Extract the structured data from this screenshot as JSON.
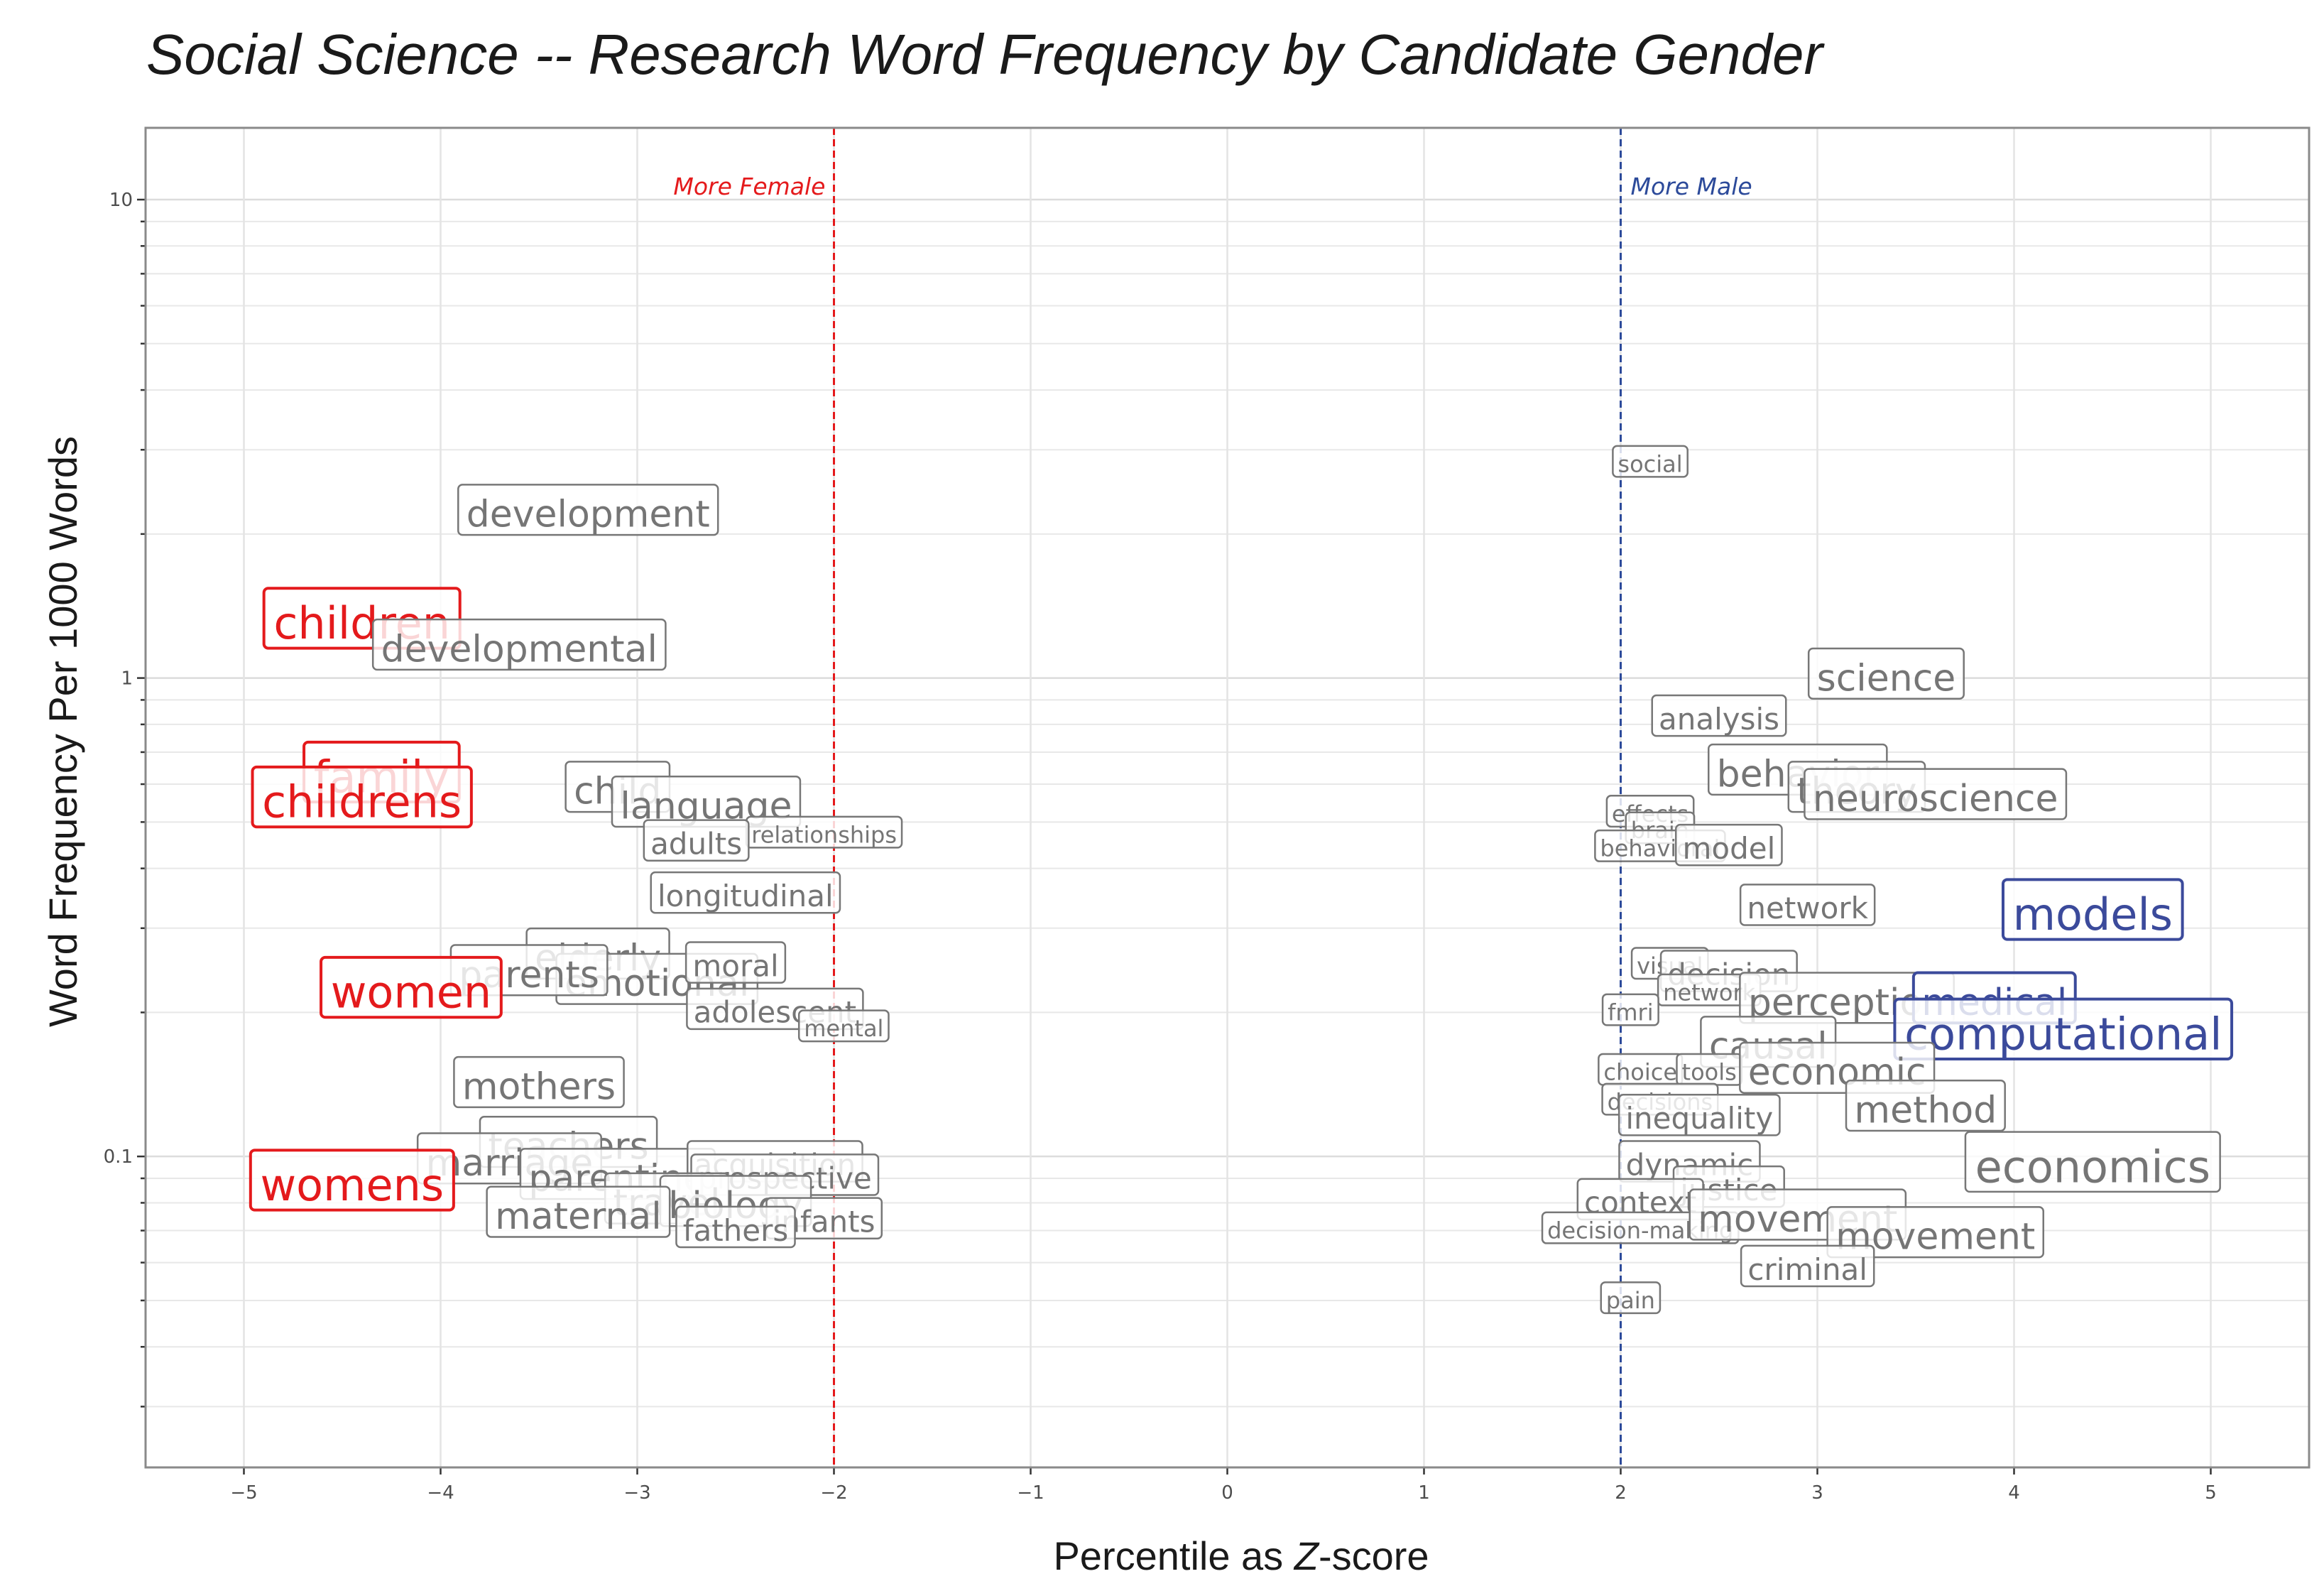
{
  "chart_data": {
    "type": "scatter",
    "title": "Social Science -- Research Word Frequency by Candidate Gender",
    "xlabel": "Percentile as Z-score",
    "ylabel": "Word Frequency Per 1000 Words",
    "xlabel_prefix": "Percentile as ",
    "xlabel_italic": "Z",
    "xlabel_suffix": "-score",
    "xlim": [
      -5.5,
      5.5
    ],
    "ylim_log10": [
      -1.65,
      1.15
    ],
    "y_scale": "log10",
    "x_ticks": [
      -5,
      -4,
      -3,
      -2,
      -1,
      0,
      1,
      2,
      3,
      4,
      5
    ],
    "x_tick_labels": [
      "−5",
      "−4",
      "−3",
      "−2",
      "−1",
      "0",
      "1",
      "2",
      "3",
      "4",
      "5"
    ],
    "y_ticks": [
      0.1,
      1,
      10
    ],
    "y_tick_labels": [
      "0.1",
      "1",
      "10"
    ],
    "grid": true,
    "reference_lines": [
      {
        "x": -2,
        "label": "More Female",
        "color": "#e41a1c"
      },
      {
        "x": 2,
        "label": "More Male",
        "color": "#2c4a9a"
      }
    ],
    "colors": {
      "female": "#e41a1c",
      "male": "#3b4a9b",
      "neutral": "#6e6e6e"
    },
    "words": [
      {
        "text": "development",
        "x": -3.25,
        "y": 2.2,
        "size": 3,
        "color": "neutral"
      },
      {
        "text": "children",
        "x": -4.4,
        "y": 1.3,
        "size": 4,
        "color": "female"
      },
      {
        "text": "developmental",
        "x": -3.6,
        "y": 1.15,
        "size": 3,
        "color": "neutral"
      },
      {
        "text": "family",
        "x": -4.3,
        "y": 0.62,
        "size": 4,
        "color": "female"
      },
      {
        "text": "childrens",
        "x": -4.4,
        "y": 0.55,
        "size": 4,
        "color": "female"
      },
      {
        "text": "child",
        "x": -3.1,
        "y": 0.58,
        "size": 3,
        "color": "neutral"
      },
      {
        "text": "language",
        "x": -2.65,
        "y": 0.54,
        "size": 3,
        "color": "neutral"
      },
      {
        "text": "relationships",
        "x": -2.05,
        "y": 0.47,
        "size": 1,
        "color": "neutral"
      },
      {
        "text": "adults",
        "x": -2.7,
        "y": 0.45,
        "size": 2,
        "color": "neutral"
      },
      {
        "text": "longitudinal",
        "x": -2.45,
        "y": 0.35,
        "size": 2,
        "color": "neutral"
      },
      {
        "text": "elderly",
        "x": -3.2,
        "y": 0.26,
        "size": 3,
        "color": "neutral"
      },
      {
        "text": "emotional",
        "x": -2.9,
        "y": 0.23,
        "size": 3,
        "color": "neutral"
      },
      {
        "text": "moral",
        "x": -2.5,
        "y": 0.25,
        "size": 2,
        "color": "neutral"
      },
      {
        "text": "parents",
        "x": -3.55,
        "y": 0.24,
        "size": 3,
        "color": "neutral"
      },
      {
        "text": "adolescent",
        "x": -2.3,
        "y": 0.2,
        "size": 2,
        "color": "neutral"
      },
      {
        "text": "mental",
        "x": -1.95,
        "y": 0.185,
        "size": 1,
        "color": "neutral"
      },
      {
        "text": "women",
        "x": -4.15,
        "y": 0.22,
        "size": 4,
        "color": "female"
      },
      {
        "text": "mothers",
        "x": -3.5,
        "y": 0.14,
        "size": 3,
        "color": "neutral"
      },
      {
        "text": "teachers",
        "x": -3.35,
        "y": 0.105,
        "size": 3,
        "color": "neutral"
      },
      {
        "text": "marriage",
        "x": -3.65,
        "y": 0.097,
        "size": 3,
        "color": "neutral"
      },
      {
        "text": "parenting",
        "x": -3.1,
        "y": 0.09,
        "size": 3,
        "color": "neutral"
      },
      {
        "text": "acquisition",
        "x": -2.3,
        "y": 0.096,
        "size": 2,
        "color": "neutral"
      },
      {
        "text": "prospective",
        "x": -2.25,
        "y": 0.09,
        "size": 2,
        "color": "neutral"
      },
      {
        "text": "womens",
        "x": -4.45,
        "y": 0.087,
        "size": 4,
        "color": "female"
      },
      {
        "text": "travel",
        "x": -2.85,
        "y": 0.08,
        "size": 3,
        "color": "neutral"
      },
      {
        "text": "biology",
        "x": -2.5,
        "y": 0.079,
        "size": 3,
        "color": "neutral"
      },
      {
        "text": "maternal",
        "x": -3.3,
        "y": 0.075,
        "size": 3,
        "color": "neutral"
      },
      {
        "text": "infants",
        "x": -2.05,
        "y": 0.073,
        "size": 2,
        "color": "neutral"
      },
      {
        "text": "fathers",
        "x": -2.5,
        "y": 0.07,
        "size": 2,
        "color": "neutral"
      },
      {
        "text": "social",
        "x": 2.15,
        "y": 2.8,
        "size": 1,
        "color": "neutral"
      },
      {
        "text": "science",
        "x": 3.35,
        "y": 1.0,
        "size": 3,
        "color": "neutral"
      },
      {
        "text": "analysis",
        "x": 2.5,
        "y": 0.82,
        "size": 2,
        "color": "neutral"
      },
      {
        "text": "behavior",
        "x": 2.9,
        "y": 0.63,
        "size": 3,
        "color": "neutral"
      },
      {
        "text": "theory",
        "x": 3.2,
        "y": 0.58,
        "size": 3,
        "color": "neutral"
      },
      {
        "text": "neuroscience",
        "x": 3.6,
        "y": 0.56,
        "size": 3,
        "color": "neutral"
      },
      {
        "text": "effects",
        "x": 2.15,
        "y": 0.52,
        "size": 1,
        "color": "neutral"
      },
      {
        "text": "brain",
        "x": 2.2,
        "y": 0.48,
        "size": 1,
        "color": "neutral"
      },
      {
        "text": "behavioral",
        "x": 2.2,
        "y": 0.44,
        "size": 1,
        "color": "neutral"
      },
      {
        "text": "model",
        "x": 2.55,
        "y": 0.44,
        "size": 2,
        "color": "neutral"
      },
      {
        "text": "network",
        "x": 2.95,
        "y": 0.33,
        "size": 2,
        "color": "neutral"
      },
      {
        "text": "models",
        "x": 4.4,
        "y": 0.32,
        "size": 4,
        "color": "male"
      },
      {
        "text": "visual",
        "x": 2.25,
        "y": 0.25,
        "size": 1,
        "color": "neutral"
      },
      {
        "text": "decision",
        "x": 2.55,
        "y": 0.24,
        "size": 2,
        "color": "neutral"
      },
      {
        "text": "network",
        "x": 2.45,
        "y": 0.22,
        "size": 1,
        "color": "neutral"
      },
      {
        "text": "perception",
        "x": 3.15,
        "y": 0.21,
        "size": 3,
        "color": "neutral"
      },
      {
        "text": "medical",
        "x": 3.9,
        "y": 0.21,
        "size": 3,
        "color": "male"
      },
      {
        "text": "fmri",
        "x": 2.05,
        "y": 0.2,
        "size": 1,
        "color": "neutral"
      },
      {
        "text": "computational",
        "x": 4.25,
        "y": 0.18,
        "size": 4,
        "color": "male"
      },
      {
        "text": "causal",
        "x": 2.75,
        "y": 0.17,
        "size": 3,
        "color": "neutral"
      },
      {
        "text": "choice",
        "x": 2.1,
        "y": 0.15,
        "size": 1,
        "color": "neutral"
      },
      {
        "text": "tools",
        "x": 2.45,
        "y": 0.15,
        "size": 1,
        "color": "neutral"
      },
      {
        "text": "economic",
        "x": 3.1,
        "y": 0.15,
        "size": 3,
        "color": "neutral"
      },
      {
        "text": "decisions",
        "x": 2.2,
        "y": 0.13,
        "size": 1,
        "color": "neutral"
      },
      {
        "text": "inequality",
        "x": 2.4,
        "y": 0.12,
        "size": 2,
        "color": "neutral"
      },
      {
        "text": "method",
        "x": 3.55,
        "y": 0.125,
        "size": 3,
        "color": "neutral"
      },
      {
        "text": "economics",
        "x": 4.4,
        "y": 0.095,
        "size": 4,
        "color": "neutral"
      },
      {
        "text": "dynamic",
        "x": 2.35,
        "y": 0.096,
        "size": 2,
        "color": "neutral"
      },
      {
        "text": "justice",
        "x": 2.55,
        "y": 0.085,
        "size": 2,
        "color": "neutral"
      },
      {
        "text": "context",
        "x": 2.1,
        "y": 0.08,
        "size": 2,
        "color": "neutral"
      },
      {
        "text": "decision-making",
        "x": 2.1,
        "y": 0.07,
        "size": 1,
        "color": "neutral"
      },
      {
        "text": "movement",
        "x": 2.9,
        "y": 0.074,
        "size": 3,
        "color": "neutral"
      },
      {
        "text": "movement",
        "x": 3.6,
        "y": 0.068,
        "size": 3,
        "color": "neutral"
      },
      {
        "text": "criminal",
        "x": 2.95,
        "y": 0.058,
        "size": 2,
        "color": "neutral"
      },
      {
        "text": "pain",
        "x": 2.05,
        "y": 0.05,
        "size": 1,
        "color": "neutral"
      }
    ]
  }
}
